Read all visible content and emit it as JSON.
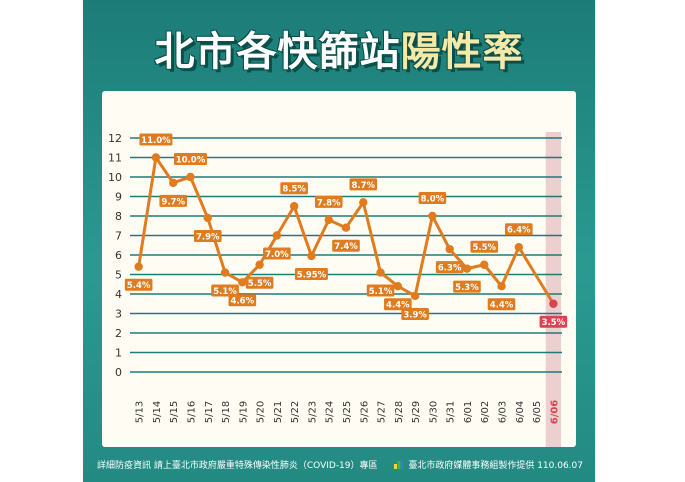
{
  "title": {
    "main": "北市各快篩站",
    "accent": "陽性率"
  },
  "colors": {
    "line": "#e07b1f",
    "highlight": "#d94452",
    "grid": "#1d7c77",
    "highlight_band": "#e7c3c6"
  },
  "chart_data": {
    "type": "line",
    "title": "北市各快篩站陽性率",
    "xlabel": "",
    "ylabel": "",
    "ylim": [
      0,
      12
    ],
    "yticks": [
      "0",
      "1",
      "2",
      "3",
      "4",
      "5",
      "6",
      "7",
      "8",
      "9",
      "10",
      "11",
      "12"
    ],
    "grid": true,
    "categories": [
      "5/13",
      "5/14",
      "5/15",
      "5/16",
      "5/17",
      "5/18",
      "5/19",
      "5/20",
      "5/21",
      "5/22",
      "5/23",
      "5/24",
      "5/25",
      "5/26",
      "5/27",
      "5/28",
      "5/29",
      "5/30",
      "5/31",
      "6/01",
      "6/02",
      "6/03",
      "6/04",
      "6/05",
      "6/06"
    ],
    "series": [
      {
        "values": [
          5.4,
          11.0,
          9.7,
          10.0,
          7.9,
          5.1,
          4.6,
          5.5,
          7.0,
          8.5,
          5.95,
          7.8,
          7.4,
          8.7,
          5.1,
          4.4,
          3.9,
          8.0,
          6.3,
          5.3,
          5.5,
          4.4,
          6.4,
          null,
          3.5
        ],
        "labels": [
          "5.4%",
          "11.0%",
          "9.7%",
          "10.0%",
          "7.9%",
          "5.1%",
          "4.6%",
          "5.5%",
          "7.0%",
          "8.5%",
          "5.95%",
          "7.8%",
          "7.4%",
          "8.7%",
          "5.1%",
          "4.4%",
          "3.9%",
          "8.0%",
          "6.3%",
          "5.3%",
          "5.5%",
          "4.4%",
          "6.4%",
          "",
          "3.5%"
        ]
      }
    ],
    "highlighted_category": "6/06"
  },
  "footer": {
    "left": "詳細防疫資訊  請上臺北市政府嚴重特殊傳染性肺炎（COVID-19）專區",
    "right": "臺北市政府媒體事務組製作提供  110.06.07"
  }
}
